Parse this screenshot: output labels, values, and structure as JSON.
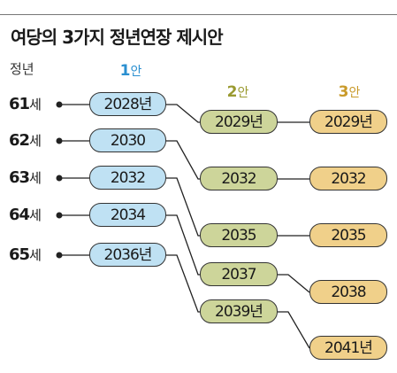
{
  "title": "여당의 3가지 정년연장 제시안",
  "age_header": "정년",
  "plans": [
    {
      "num": "1",
      "suffix": "안",
      "color": "#2a8fd0"
    },
    {
      "num": "2",
      "suffix": "안",
      "color": "#9a9a30"
    },
    {
      "num": "3",
      "suffix": "안",
      "color": "#c99a2a"
    }
  ],
  "ages": [
    {
      "num": "61",
      "suffix": "세"
    },
    {
      "num": "62",
      "suffix": "세"
    },
    {
      "num": "63",
      "suffix": "세"
    },
    {
      "num": "64",
      "suffix": "세"
    },
    {
      "num": "65",
      "suffix": "세"
    }
  ],
  "plan1_years": [
    "2028년",
    "2030",
    "2032",
    "2034",
    "2036년"
  ],
  "plan2_years": [
    "2029년",
    "2032",
    "2035",
    "2037",
    "2039년"
  ],
  "plan3_years": [
    "2029년",
    "2032",
    "2035",
    "2038",
    "2041년"
  ],
  "colors": {
    "plan1_fill": "#bfe1f3",
    "plan2_fill": "#cdd59a",
    "plan3_fill": "#f0d08a"
  }
}
